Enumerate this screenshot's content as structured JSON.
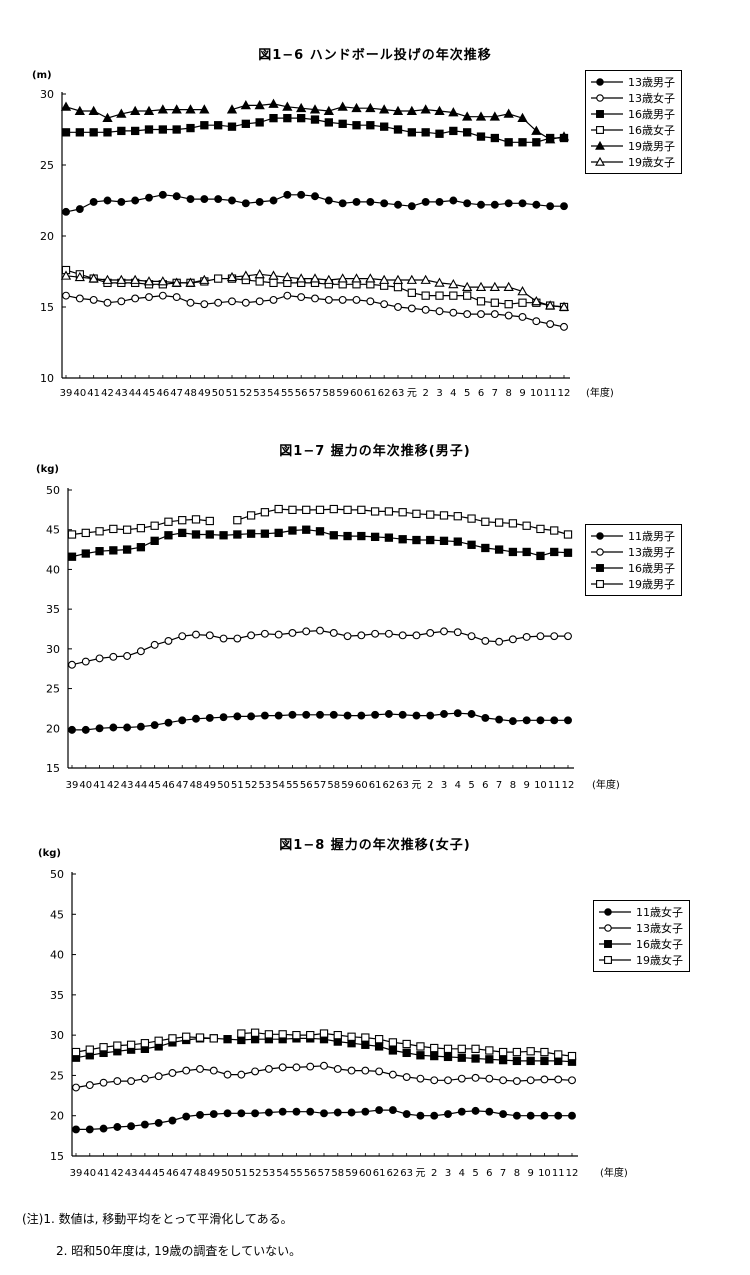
{
  "x_labels": [
    "39",
    "40",
    "41",
    "42",
    "43",
    "44",
    "45",
    "46",
    "47",
    "48",
    "49",
    "50",
    "51",
    "52",
    "53",
    "54",
    "55",
    "56",
    "57",
    "58",
    "59",
    "60",
    "61",
    "62",
    "63",
    "元",
    "2",
    "3",
    "4",
    "5",
    "6",
    "7",
    "8",
    "9",
    "10",
    "11",
    "12"
  ],
  "x_unit": "(年度)",
  "colors": {
    "line": "#000000",
    "fill_open": "#ffffff",
    "fill_filled": "#000000"
  },
  "chart_data": [
    {
      "type": "line",
      "title": "図1−6 ハンドボール投げの年次推移",
      "ylabel": "(m)",
      "ylim": [
        10,
        30
      ],
      "yticks": [
        10,
        15,
        20,
        25,
        30
      ],
      "grid": false,
      "legend_position": "top-right",
      "series": [
        {
          "name": "13歳男子",
          "marker": "circle",
          "filled": true,
          "values": [
            21.7,
            21.9,
            22.4,
            22.5,
            22.4,
            22.5,
            22.7,
            22.9,
            22.8,
            22.6,
            22.6,
            22.6,
            22.5,
            22.3,
            22.4,
            22.5,
            22.9,
            22.9,
            22.8,
            22.5,
            22.3,
            22.4,
            22.4,
            22.3,
            22.2,
            22.1,
            22.4,
            22.4,
            22.5,
            22.3,
            22.2,
            22.2,
            22.3,
            22.3,
            22.2,
            22.1,
            22.1
          ]
        },
        {
          "name": "13歳女子",
          "marker": "circle",
          "filled": false,
          "values": [
            15.8,
            15.6,
            15.5,
            15.3,
            15.4,
            15.6,
            15.7,
            15.8,
            15.7,
            15.3,
            15.2,
            15.3,
            15.4,
            15.3,
            15.4,
            15.5,
            15.8,
            15.7,
            15.6,
            15.5,
            15.5,
            15.5,
            15.4,
            15.2,
            15.0,
            14.9,
            14.8,
            14.7,
            14.6,
            14.5,
            14.5,
            14.5,
            14.4,
            14.3,
            14.0,
            13.8,
            13.6
          ]
        },
        {
          "name": "16歳男子",
          "marker": "square",
          "filled": true,
          "values": [
            27.3,
            27.3,
            27.3,
            27.3,
            27.4,
            27.4,
            27.5,
            27.5,
            27.5,
            27.6,
            27.8,
            27.8,
            27.7,
            27.9,
            28.0,
            28.3,
            28.3,
            28.3,
            28.2,
            28.0,
            27.9,
            27.8,
            27.8,
            27.7,
            27.5,
            27.3,
            27.3,
            27.2,
            27.4,
            27.3,
            27.0,
            26.9,
            26.6,
            26.6,
            26.6,
            26.9,
            26.9
          ]
        },
        {
          "name": "16歳女子",
          "marker": "square",
          "filled": false,
          "values": [
            17.6,
            17.3,
            17.0,
            16.7,
            16.7,
            16.7,
            16.6,
            16.6,
            16.7,
            16.7,
            16.8,
            17.0,
            17.0,
            16.9,
            16.8,
            16.7,
            16.7,
            16.7,
            16.7,
            16.6,
            16.6,
            16.6,
            16.6,
            16.5,
            16.4,
            16.0,
            15.8,
            15.8,
            15.8,
            15.8,
            15.4,
            15.3,
            15.2,
            15.3,
            15.3,
            15.1,
            15.0
          ]
        },
        {
          "name": "19歳男子",
          "marker": "triangle",
          "filled": true,
          "values": [
            29.1,
            28.8,
            28.8,
            28.3,
            28.6,
            28.8,
            28.8,
            28.9,
            28.9,
            28.9,
            28.9,
            null,
            28.9,
            29.2,
            29.2,
            29.3,
            29.1,
            29.0,
            28.9,
            28.8,
            29.1,
            29.0,
            29.0,
            28.9,
            28.8,
            28.8,
            28.9,
            28.8,
            28.7,
            28.4,
            28.4,
            28.4,
            28.6,
            28.3,
            27.4,
            26.8,
            27.0
          ]
        },
        {
          "name": "19歳女子",
          "marker": "triangle",
          "filled": false,
          "values": [
            17.2,
            17.1,
            17.0,
            16.9,
            16.9,
            16.9,
            16.8,
            16.8,
            16.7,
            16.7,
            16.9,
            null,
            17.1,
            17.2,
            17.3,
            17.2,
            17.1,
            17.0,
            17.0,
            16.9,
            17.0,
            17.0,
            17.0,
            16.9,
            16.9,
            16.9,
            16.9,
            16.7,
            16.6,
            16.4,
            16.4,
            16.4,
            16.4,
            16.1,
            15.4,
            15.1,
            15.0
          ]
        }
      ]
    },
    {
      "type": "line",
      "title": "図1−7 握力の年次推移(男子)",
      "ylabel": "(kg)",
      "ylim": [
        15,
        50
      ],
      "yticks": [
        15,
        20,
        25,
        30,
        35,
        40,
        45,
        50
      ],
      "grid": false,
      "legend_position": "right",
      "series": [
        {
          "name": "11歳男子",
          "marker": "circle",
          "filled": true,
          "values": [
            19.8,
            19.8,
            20.0,
            20.1,
            20.1,
            20.2,
            20.4,
            20.7,
            21.0,
            21.2,
            21.3,
            21.4,
            21.5,
            21.5,
            21.6,
            21.6,
            21.7,
            21.7,
            21.7,
            21.7,
            21.6,
            21.6,
            21.7,
            21.8,
            21.7,
            21.6,
            21.6,
            21.8,
            21.9,
            21.8,
            21.3,
            21.1,
            20.9,
            21.0,
            21.0,
            21.0,
            21.0
          ]
        },
        {
          "name": "13歳男子",
          "marker": "circle",
          "filled": false,
          "values": [
            28.0,
            28.4,
            28.8,
            29.0,
            29.1,
            29.7,
            30.5,
            31.0,
            31.6,
            31.8,
            31.7,
            31.3,
            31.3,
            31.7,
            31.9,
            31.8,
            32.0,
            32.2,
            32.3,
            32.0,
            31.6,
            31.7,
            31.9,
            31.9,
            31.7,
            31.7,
            32.0,
            32.2,
            32.1,
            31.6,
            31.0,
            30.9,
            31.2,
            31.5,
            31.6,
            31.6,
            31.6
          ]
        },
        {
          "name": "16歳男子",
          "marker": "square",
          "filled": true,
          "values": [
            41.6,
            42.0,
            42.3,
            42.4,
            42.5,
            42.8,
            43.6,
            44.3,
            44.6,
            44.4,
            44.4,
            44.3,
            44.4,
            44.5,
            44.5,
            44.6,
            44.9,
            45.0,
            44.8,
            44.3,
            44.2,
            44.2,
            44.1,
            44.0,
            43.8,
            43.7,
            43.7,
            43.6,
            43.5,
            43.1,
            42.7,
            42.5,
            42.2,
            42.2,
            41.7,
            42.2,
            42.1
          ]
        },
        {
          "name": "19歳男子",
          "marker": "square",
          "filled": false,
          "values": [
            44.4,
            44.6,
            44.8,
            45.1,
            45.0,
            45.2,
            45.5,
            46.0,
            46.2,
            46.3,
            46.1,
            null,
            46.2,
            46.8,
            47.2,
            47.6,
            47.5,
            47.5,
            47.5,
            47.6,
            47.5,
            47.5,
            47.3,
            47.3,
            47.2,
            47.0,
            46.9,
            46.8,
            46.7,
            46.4,
            46.0,
            45.9,
            45.8,
            45.5,
            45.1,
            44.9,
            44.4
          ]
        }
      ]
    },
    {
      "type": "line",
      "title": "図1−8 握力の年次推移(女子)",
      "ylabel": "(kg)",
      "ylim": [
        15,
        50
      ],
      "yticks": [
        15,
        20,
        25,
        30,
        35,
        40,
        45,
        50
      ],
      "grid": false,
      "legend_position": "right",
      "series": [
        {
          "name": "11歳女子",
          "marker": "circle",
          "filled": true,
          "values": [
            18.3,
            18.3,
            18.4,
            18.6,
            18.7,
            18.9,
            19.1,
            19.4,
            19.9,
            20.1,
            20.2,
            20.3,
            20.3,
            20.3,
            20.4,
            20.5,
            20.5,
            20.5,
            20.3,
            20.4,
            20.4,
            20.5,
            20.7,
            20.7,
            20.2,
            20.0,
            20.0,
            20.2,
            20.5,
            20.6,
            20.5,
            20.2,
            20.0,
            20.0,
            20.0,
            20.0,
            20.0
          ]
        },
        {
          "name": "13歳女子",
          "marker": "circle",
          "filled": false,
          "values": [
            23.5,
            23.8,
            24.1,
            24.3,
            24.3,
            24.6,
            24.9,
            25.3,
            25.6,
            25.8,
            25.6,
            25.1,
            25.1,
            25.5,
            25.8,
            26.0,
            26.0,
            26.1,
            26.2,
            25.8,
            25.6,
            25.6,
            25.5,
            25.1,
            24.8,
            24.6,
            24.4,
            24.4,
            24.6,
            24.7,
            24.6,
            24.4,
            24.3,
            24.4,
            24.5,
            24.5,
            24.4
          ]
        },
        {
          "name": "16歳女子",
          "marker": "square",
          "filled": true,
          "values": [
            27.2,
            27.5,
            27.8,
            28.0,
            28.2,
            28.3,
            28.6,
            29.1,
            29.4,
            29.6,
            29.6,
            29.5,
            29.4,
            29.5,
            29.5,
            29.5,
            29.6,
            29.6,
            29.5,
            29.2,
            29.0,
            28.8,
            28.6,
            28.1,
            27.8,
            27.5,
            27.4,
            27.3,
            27.2,
            27.1,
            27.0,
            26.9,
            26.8,
            26.8,
            26.8,
            26.8,
            26.7
          ]
        },
        {
          "name": "19歳女子",
          "marker": "square",
          "filled": false,
          "values": [
            27.9,
            28.2,
            28.5,
            28.7,
            28.8,
            29.0,
            29.3,
            29.6,
            29.8,
            29.7,
            29.6,
            null,
            30.2,
            30.3,
            30.1,
            30.1,
            30.0,
            30.0,
            30.2,
            30.0,
            29.8,
            29.7,
            29.5,
            29.1,
            28.9,
            28.6,
            28.4,
            28.3,
            28.3,
            28.3,
            28.1,
            27.9,
            27.9,
            28.0,
            27.9,
            27.6,
            27.4
          ]
        }
      ]
    }
  ],
  "notes": [
    "(注)1. 数値は, 移動平均をとって平滑化してある。",
    "2. 昭和50年度は, 19歳の調査をしていない。"
  ]
}
